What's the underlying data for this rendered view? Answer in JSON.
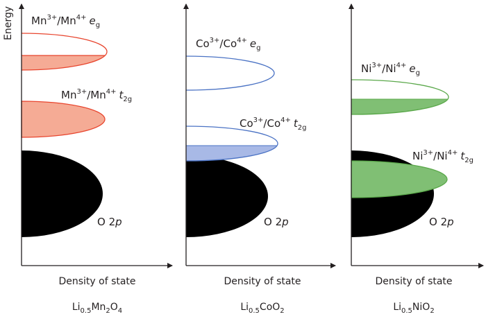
{
  "y_axis_label": "Energy",
  "x_axis_label": "Density of state",
  "colors": {
    "mn_stroke": "#e8452e",
    "mn_fill": "#f5ab95",
    "co_stroke": "#4a72c4",
    "co_fill": "#a8b9e6",
    "ni_stroke": "#5aa84a",
    "ni_fill": "#80bf74",
    "o2p_fill": "#000000"
  },
  "panels": [
    {
      "compound": {
        "a": "Li",
        "a_sub": "0.5",
        "b": "Mn",
        "b_sub": "2",
        "c": "O",
        "c_sub": "4"
      },
      "eg": {
        "ion": "Mn",
        "ox1": "3+",
        "ox2": "4+",
        "orb": "e",
        "orb_sub": "g"
      },
      "t2g": {
        "ion": "Mn",
        "ox1": "3+",
        "ox2": "4+",
        "orb": "t",
        "orb_sub": "2g"
      },
      "o2p": {
        "pre": "O 2",
        "orb": "p"
      }
    },
    {
      "compound": {
        "a": "Li",
        "a_sub": "0.5",
        "b": "CoO",
        "b_sub": "2"
      },
      "eg": {
        "ion": "Co",
        "ox1": "3+",
        "ox2": "4+",
        "orb": "e",
        "orb_sub": "g"
      },
      "t2g": {
        "ion": "Co",
        "ox1": "3+",
        "ox2": "4+",
        "orb": "t",
        "orb_sub": "2g"
      },
      "o2p": {
        "pre": "O 2",
        "orb": "p"
      }
    },
    {
      "compound": {
        "a": "Li",
        "a_sub": "0.5",
        "b": "NiO",
        "b_sub": "2"
      },
      "eg": {
        "ion": "Ni",
        "ox1": "3+",
        "ox2": "4+",
        "orb": "e",
        "orb_sub": "g"
      },
      "t2g": {
        "ion": "Ni",
        "ox1": "3+",
        "ox2": "4+",
        "orb": "t",
        "orb_sub": "2g"
      },
      "o2p": {
        "pre": "O 2",
        "orb": "p"
      }
    }
  ]
}
